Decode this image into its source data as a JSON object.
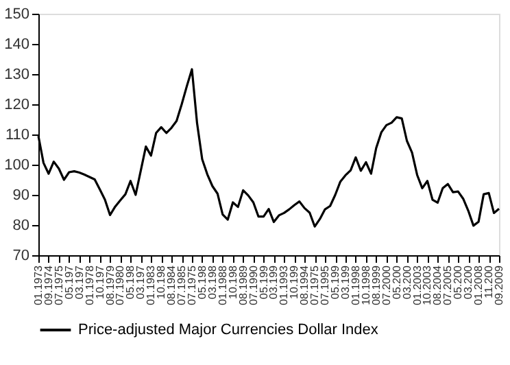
{
  "chart_data": {
    "type": "line",
    "ylim": [
      70,
      150
    ],
    "yticks": [
      70,
      80,
      90,
      100,
      110,
      120,
      130,
      140,
      150
    ],
    "categories": [
      "01.1973",
      null,
      "09.1974",
      null,
      "07.1975",
      null,
      "05.197",
      null,
      "03.197",
      null,
      "01.1978",
      null,
      "10.197",
      null,
      "08.1979",
      null,
      "07.1980",
      null,
      "05.198",
      null,
      "03.197",
      null,
      "01.1983",
      null,
      "10.198",
      null,
      "08.1984",
      null,
      "07.1985",
      null,
      "07.1975",
      null,
      "05.198",
      null,
      "03.198",
      null,
      "01.1988",
      null,
      "10.198",
      null,
      "08.1989",
      null,
      "07.1990",
      null,
      "05.199",
      null,
      "03.199",
      null,
      "01.1993",
      null,
      "10.199",
      null,
      "08.1994",
      null,
      "07.1975",
      null,
      "07.1995",
      null,
      "05.199",
      null,
      "03.199",
      null,
      "01.1998",
      null,
      "10.1998",
      null,
      "08.1999",
      null,
      "07.2000",
      null,
      "05.200",
      null,
      "03.200",
      null,
      "01.2003",
      null,
      "10.2003",
      null,
      "08.2004",
      null,
      "07.2005",
      null,
      "05.200",
      null,
      "03.200",
      null,
      "01.2008",
      null,
      "11.200",
      null,
      "09.2009"
    ],
    "legend": "bottom",
    "grid": false,
    "series": [
      {
        "name": "Price-adjusted Major Currencies Dollar Index",
        "color": "#000000",
        "values": [
          109.5,
          100.6,
          97,
          101,
          98.7,
          95,
          97.5,
          97.8,
          97.4,
          96.7,
          95.9,
          95.1,
          91.8,
          88.4,
          83.3,
          86.1,
          88.2,
          90.2,
          94.6,
          90,
          98,
          106,
          103,
          110.5,
          112.4,
          110.5,
          112.2,
          114.5,
          120,
          126,
          131.6,
          113.8,
          101.8,
          96.8,
          92.9,
          90.4,
          83.5,
          81.8,
          87.5,
          86,
          91.5,
          89.8,
          87.5,
          82.8,
          82.8,
          85.3,
          81,
          83.2,
          84,
          85.2,
          86.6,
          87.8,
          85.6,
          84.1,
          79.5,
          82,
          85.2,
          86.3,
          90,
          94.4,
          96.5,
          98.1,
          102.4,
          98,
          100.8,
          97,
          105.5,
          110.7,
          113.1,
          113.9,
          115.7,
          115.3,
          107.9,
          104,
          96.6,
          92.2,
          94.6,
          88.4,
          87.4,
          92.2,
          93.6,
          90.9,
          91.1,
          88.7,
          84.7,
          79.8,
          81.1,
          90.2,
          90.6,
          84,
          85.4
        ]
      }
    ]
  }
}
